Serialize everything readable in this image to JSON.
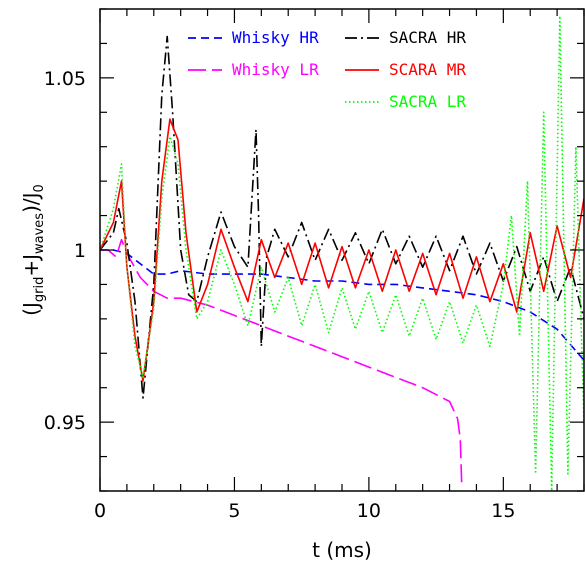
{
  "chart_data": {
    "type": "line",
    "title": "",
    "xlabel": "t (ms)",
    "ylabel": {
      "open": "(J",
      "sub1": "grid",
      "plus": "+J",
      "sub2": "waves",
      "close": ")/J",
      "sub3": "0"
    },
    "xlim": [
      0,
      18
    ],
    "ylim": [
      0.93,
      1.07
    ],
    "x_ticks": [
      0,
      5,
      10,
      15
    ],
    "x_tick_labels": [
      "0",
      "5",
      "10",
      "15"
    ],
    "y_ticks": [
      0.95,
      1.0,
      1.05
    ],
    "y_tick_labels": [
      "0.95",
      "1",
      "1.05"
    ],
    "legend_position": "top",
    "series": [
      {
        "name": "Whisky HR",
        "color": "#0000ff",
        "dash": "dashed",
        "x": [
          0,
          0.5,
          1.0,
          1.5,
          2.0,
          2.5,
          3.0,
          4.0,
          5.0,
          6.0,
          7.0,
          8.0,
          9.0,
          10.0,
          11.0,
          12.0,
          13.0,
          14.0,
          15.0,
          16.0,
          17.0,
          18.0
        ],
        "y": [
          1.0,
          1.0,
          0.999,
          0.996,
          0.993,
          0.993,
          0.994,
          0.993,
          0.993,
          0.993,
          0.992,
          0.991,
          0.991,
          0.99,
          0.99,
          0.989,
          0.988,
          0.987,
          0.985,
          0.982,
          0.977,
          0.968
        ]
      },
      {
        "name": "Whisky LR",
        "color": "#ff00ff",
        "dash": "longdash",
        "x": [
          0,
          0.3,
          0.6,
          0.8,
          1.0,
          1.5,
          2.0,
          2.5,
          3.0,
          3.5,
          4.0,
          5.0,
          6.0,
          7.0,
          8.0,
          9.0,
          10.0,
          11.0,
          12.0,
          12.5,
          13.0,
          13.3,
          13.4,
          13.45
        ],
        "y": [
          1.0,
          1.0,
          0.998,
          1.003,
          0.999,
          0.992,
          0.988,
          0.986,
          0.986,
          0.985,
          0.984,
          0.981,
          0.978,
          0.975,
          0.972,
          0.969,
          0.966,
          0.963,
          0.96,
          0.958,
          0.956,
          0.951,
          0.945,
          0.932
        ]
      },
      {
        "name": "SACRA HR",
        "color": "#000000",
        "dash": "dashdot",
        "x": [
          0,
          0.5,
          0.7,
          1.0,
          1.3,
          1.6,
          2.0,
          2.3,
          2.5,
          2.7,
          3.0,
          3.3,
          3.6,
          4.0,
          4.5,
          5.0,
          5.5,
          5.8,
          5.9,
          6.0,
          6.2,
          6.5,
          7.0,
          7.5,
          8.0,
          8.5,
          9.0,
          9.5,
          10.0,
          10.5,
          11.0,
          11.5,
          12.0,
          12.5,
          13.0,
          13.5,
          14.0,
          14.5,
          15.0,
          15.5,
          16.0,
          16.5,
          17.0,
          17.5,
          18.0
        ],
        "y": [
          1.0,
          1.005,
          1.012,
          1.002,
          0.985,
          0.957,
          0.99,
          1.045,
          1.062,
          1.04,
          1.0,
          0.987,
          0.985,
          0.998,
          1.011,
          1.001,
          0.995,
          1.035,
          1.01,
          0.972,
          0.998,
          1.006,
          0.998,
          1.008,
          0.997,
          1.006,
          0.997,
          1.005,
          0.996,
          1.006,
          0.996,
          1.004,
          0.995,
          1.004,
          0.994,
          1.004,
          0.993,
          1.002,
          0.991,
          1.001,
          0.988,
          0.998,
          0.985,
          0.995,
          0.98
        ]
      },
      {
        "name": "SCARA MR",
        "color": "#ff0000",
        "dash": "solid",
        "x": [
          0,
          0.5,
          0.8,
          1.0,
          1.3,
          1.6,
          2.0,
          2.3,
          2.6,
          2.9,
          3.2,
          3.6,
          4.0,
          4.5,
          5.0,
          5.5,
          6.0,
          6.5,
          7.0,
          7.5,
          8.0,
          8.5,
          9.0,
          9.5,
          10.0,
          10.5,
          11.0,
          11.5,
          12.0,
          12.5,
          13.0,
          13.5,
          14.0,
          14.5,
          15.0,
          15.5,
          16.0,
          16.5,
          17.0,
          17.5,
          18.0
        ],
        "y": [
          1.0,
          1.008,
          1.02,
          0.995,
          0.975,
          0.962,
          0.985,
          1.02,
          1.038,
          1.032,
          1.005,
          0.982,
          0.99,
          1.006,
          0.995,
          0.985,
          1.003,
          0.992,
          1.002,
          0.99,
          1.002,
          0.989,
          1.001,
          0.989,
          1.0,
          0.988,
          1.0,
          0.988,
          0.999,
          0.987,
          0.999,
          0.986,
          0.998,
          0.985,
          0.996,
          0.982,
          1.005,
          0.988,
          1.007,
          0.992,
          1.015
        ]
      },
      {
        "name": "SACRA LR",
        "color": "#00ff00",
        "dash": "dotted",
        "x": [
          0,
          0.5,
          0.8,
          1.0,
          1.3,
          1.6,
          2.0,
          2.3,
          2.6,
          2.9,
          3.2,
          3.6,
          4.0,
          4.5,
          5.0,
          5.5,
          6.0,
          6.5,
          7.0,
          7.5,
          8.0,
          8.5,
          9.0,
          9.5,
          10.0,
          10.5,
          11.0,
          11.5,
          12.0,
          12.5,
          13.0,
          13.5,
          14.0,
          14.5,
          15.0,
          15.3,
          15.6,
          15.9,
          16.2,
          16.5,
          16.8,
          17.1,
          17.4,
          17.7,
          18.0
        ],
        "y": [
          1.0,
          1.012,
          1.025,
          0.995,
          0.972,
          0.963,
          0.983,
          1.015,
          1.033,
          1.025,
          1.0,
          0.98,
          0.985,
          1.0,
          0.99,
          0.978,
          0.995,
          0.982,
          0.992,
          0.978,
          0.99,
          0.976,
          0.989,
          0.977,
          0.988,
          0.976,
          0.987,
          0.975,
          0.986,
          0.974,
          0.985,
          0.973,
          0.984,
          0.972,
          0.99,
          1.01,
          0.975,
          1.02,
          0.935,
          1.04,
          0.93,
          1.068,
          0.935,
          1.03,
          0.95
        ]
      }
    ]
  }
}
